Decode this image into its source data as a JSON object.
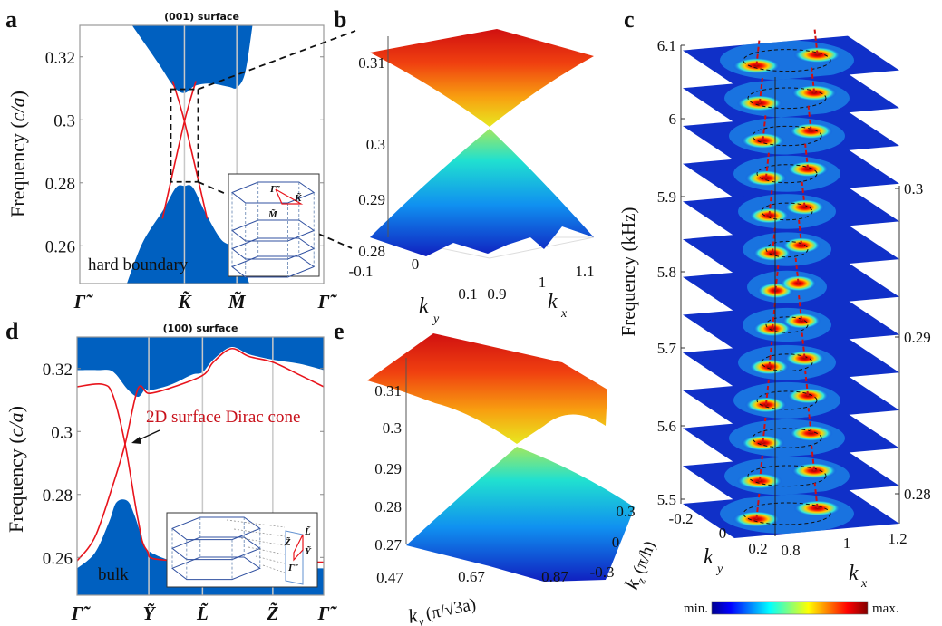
{
  "colors": {
    "bulk": "#0060c0",
    "surface_state": "#e8141c",
    "annotation": "#c8101a",
    "frame": "#999999"
  },
  "chart_data": [
    {
      "panel": "a",
      "type": "line",
      "title": "(001) surface",
      "ylabel_prefix": "Frequency (",
      "ylabel_italic": "c/a",
      "ylabel_suffix": ")",
      "ylim": [
        0.248,
        0.33
      ],
      "yticks": [
        0.26,
        0.28,
        0.3,
        0.32
      ],
      "ytick_labels": [
        "0.26",
        "0.28",
        "0.3",
        "0.32"
      ],
      "xticks": [
        0,
        1,
        1.5,
        2.33
      ],
      "xtick_labels": [
        "Γ̃",
        "K̃",
        "M̃",
        "Γ̃"
      ],
      "annotation": "hard boundary",
      "inset_labels": [
        "Γ̃",
        "K̃",
        "M̃"
      ],
      "bulk_upper_edge": [
        [
          0.5,
          0.33
        ],
        [
          0.75,
          0.318
        ],
        [
          0.9,
          0.3105
        ],
        [
          1.0,
          0.3085
        ],
        [
          1.1,
          0.3108
        ],
        [
          1.25,
          0.3115
        ],
        [
          1.42,
          0.3105
        ],
        [
          1.5,
          0.3102
        ],
        [
          1.58,
          0.315
        ],
        [
          1.65,
          0.33
        ]
      ],
      "bulk_lower_edge": [
        [
          0.45,
          0.248
        ],
        [
          0.6,
          0.261
        ],
        [
          0.8,
          0.2715
        ],
        [
          0.92,
          0.2785
        ],
        [
          1.0,
          0.279
        ],
        [
          1.08,
          0.2785
        ],
        [
          1.2,
          0.2705
        ],
        [
          1.35,
          0.262
        ],
        [
          1.5,
          0.2585
        ],
        [
          1.62,
          0.248
        ]
      ],
      "surface_states": [
        [
          [
            0.79,
            0.2686
          ],
          [
            1.0,
            0.2995
          ],
          [
            1.11,
            0.3123
          ]
        ],
        [
          [
            0.887,
            0.3123
          ],
          [
            1.0,
            0.2995
          ],
          [
            1.217,
            0.2686
          ]
        ]
      ],
      "zoom_box": {
        "k": [
          0.87,
          1.13
        ],
        "freq": [
          0.2803,
          0.3097
        ]
      }
    },
    {
      "panel": "b",
      "type": "surface",
      "zlim": [
        0.275,
        0.315
      ],
      "zticks": [
        "0.28",
        "0.29",
        "0.3",
        "0.31"
      ],
      "ky_ticks": [
        "-0.1",
        "0",
        "0.1"
      ],
      "kx_ticks": [
        "0.9",
        "1",
        "1.1"
      ],
      "xlabel": "k",
      "xlabel_sub": "x",
      "ylabel": "k",
      "ylabel_sub": "y",
      "dirac_point": 0.2995
    },
    {
      "panel": "c",
      "type": "heatmap",
      "ylabel": "Frequency (kHz)",
      "left_ticks": [
        "5.5",
        "5.6",
        "5.7",
        "5.8",
        "5.9",
        "6",
        "6.1"
      ],
      "right_ticks": [
        "0.28",
        "0.29",
        "0.3"
      ],
      "ky_ticks": [
        "-0.2",
        "0",
        "0.2"
      ],
      "kx_ticks": [
        "0.8",
        "1",
        "1.2"
      ],
      "xlabel": "k",
      "xlabel_sub": "x",
      "ylabel2": "k",
      "ylabel2_sub": "y",
      "slice_frequencies_khz": [
        6.1,
        6.05,
        6.0,
        5.95,
        5.9,
        5.85,
        5.8,
        5.75,
        5.7,
        5.65,
        5.6,
        5.55,
        5.5
      ],
      "colorbar": {
        "min_label": "min.",
        "max_label": "max.",
        "colormap": "jet"
      }
    },
    {
      "panel": "d",
      "type": "line",
      "title": "(100) surface",
      "ylabel_prefix": "Frequency (",
      "ylabel_italic": "c/a",
      "ylabel_suffix": ")",
      "ylim": [
        0.248,
        0.33
      ],
      "yticks": [
        0.26,
        0.28,
        0.3,
        0.32
      ],
      "ytick_labels": [
        "0.26",
        "0.28",
        "0.3",
        "0.32"
      ],
      "xticks": [
        0,
        1,
        1.75,
        2.73,
        3.44
      ],
      "xtick_labels": [
        "Γ̃",
        "Ỹ",
        "L̃",
        "Z̃",
        "Γ̃"
      ],
      "annotation": "2D surface Dirac cone",
      "bulk_label": "bulk",
      "inset_labels": [
        "L̃",
        "Z̃",
        "Ỹ",
        "Γ̃"
      ],
      "bulk_upper_edge": [
        [
          0,
          0.3195
        ],
        [
          0.3,
          0.3195
        ],
        [
          0.5,
          0.319
        ],
        [
          0.7,
          0.3135
        ],
        [
          0.85,
          0.311
        ],
        [
          0.95,
          0.3135
        ],
        [
          1,
          0.313
        ],
        [
          1.3,
          0.3148
        ],
        [
          1.6,
          0.318
        ],
        [
          1.75,
          0.3188
        ],
        [
          1.9,
          0.3228
        ],
        [
          2.15,
          0.3268
        ],
        [
          2.4,
          0.3245
        ],
        [
          2.73,
          0.3228
        ],
        [
          3.1,
          0.3215
        ],
        [
          3.44,
          0.3195
        ]
      ],
      "bulk_lower_edge": [
        [
          0,
          0.2565
        ],
        [
          0.25,
          0.2615
        ],
        [
          0.45,
          0.2715
        ],
        [
          0.55,
          0.2775
        ],
        [
          0.7,
          0.278
        ],
        [
          0.8,
          0.2735
        ],
        [
          0.93,
          0.2645
        ],
        [
          1.0,
          0.262
        ],
        [
          1.3,
          0.259
        ],
        [
          1.7,
          0.257
        ],
        [
          3.44,
          0.2565
        ]
      ],
      "surface_states": [
        [
          [
            0,
            0.3142
          ],
          [
            0.35,
            0.315
          ],
          [
            0.5,
            0.3115
          ],
          [
            0.67,
            0.296
          ],
          [
            0.85,
            0.272
          ],
          [
            0.97,
            0.2624
          ],
          [
            1.3,
            0.259
          ],
          [
            3.44,
            0.2585
          ]
        ],
        [
          [
            0,
            0.2589
          ],
          [
            0.25,
            0.2665
          ],
          [
            0.5,
            0.283
          ],
          [
            0.67,
            0.296
          ],
          [
            0.85,
            0.3136
          ],
          [
            1.0,
            0.3121
          ],
          [
            1.3,
            0.3138
          ],
          [
            1.75,
            0.3178
          ],
          [
            1.9,
            0.322
          ],
          [
            2.15,
            0.3263
          ],
          [
            2.4,
            0.3238
          ],
          [
            2.73,
            0.322
          ],
          [
            3.1,
            0.318
          ],
          [
            3.44,
            0.3142
          ]
        ]
      ]
    },
    {
      "panel": "e",
      "type": "surface",
      "zticks": [
        "0.27",
        "0.28",
        "0.29",
        "0.3",
        "0.31"
      ],
      "ky_ticks": [
        "0.47",
        "0.67",
        "0.87"
      ],
      "kz_ticks": [
        "-0.3",
        "0",
        "0.3"
      ],
      "ylabel": "k",
      "ylabel_sub": "y",
      "ylabel_unit": "(π/√3a)",
      "zlabel": "k",
      "zlabel_sub": "z",
      "zlabel_unit": "(π/h)"
    }
  ],
  "panel_letters": [
    "a",
    "b",
    "c",
    "d",
    "e"
  ]
}
